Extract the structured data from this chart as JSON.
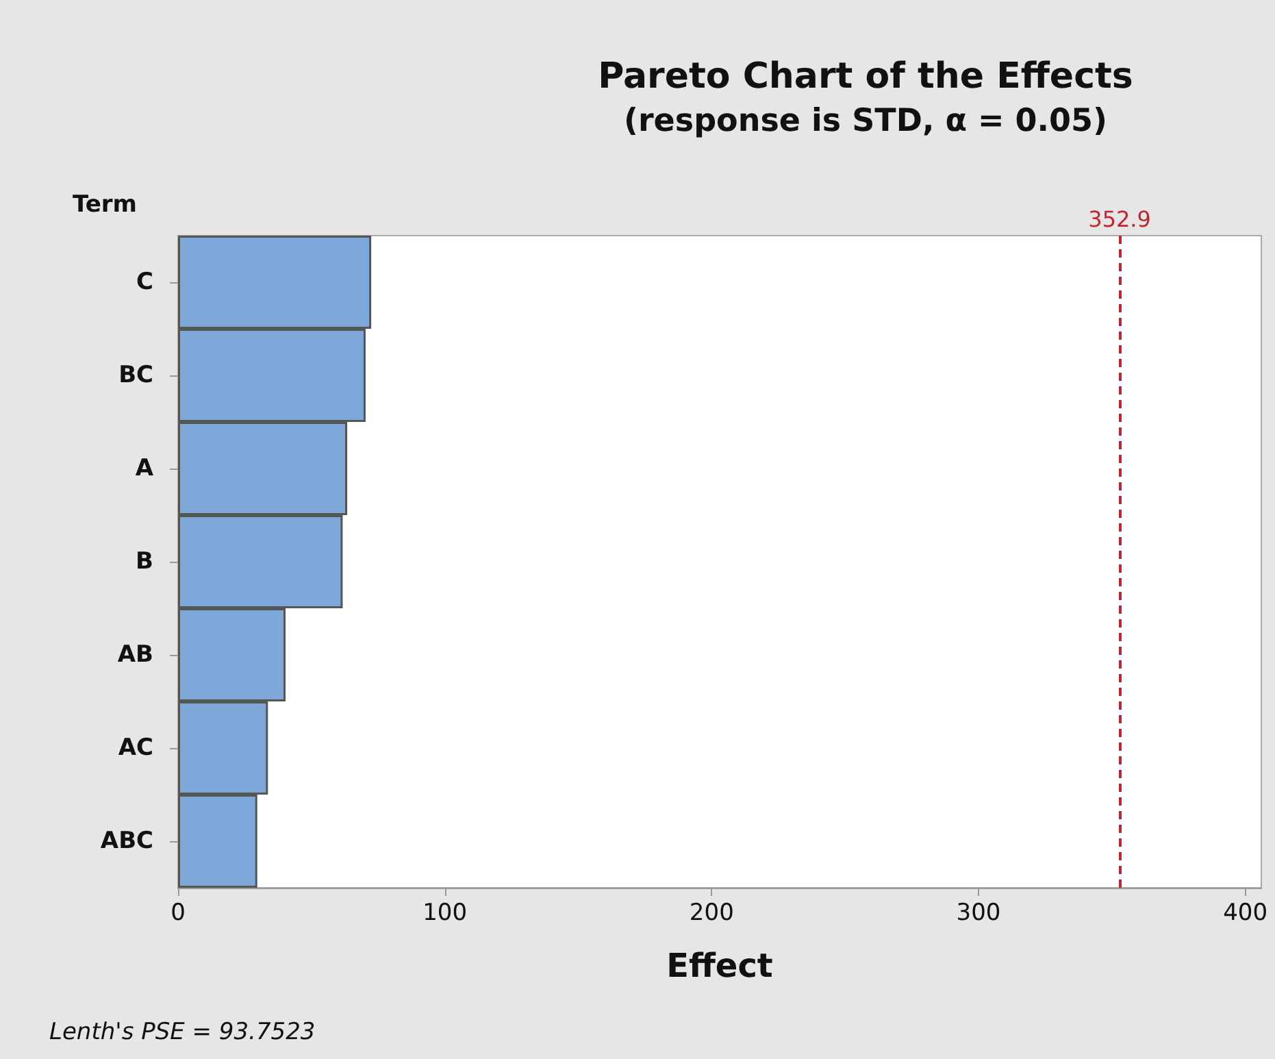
{
  "chart_data": {
    "type": "bar",
    "orientation": "horizontal",
    "title": "Pareto Chart of the Effects",
    "subtitle": "(response is STD, α = 0.05)",
    "xlabel": "Effect",
    "ylabel": "Term",
    "categories": [
      "C",
      "BC",
      "A",
      "B",
      "AB",
      "AC",
      "ABC"
    ],
    "values": [
      72.4,
      70.3,
      63.4,
      61.7,
      40.3,
      33.7,
      29.7
    ],
    "color": "#7ba7d9",
    "xlim": [
      0,
      406
    ],
    "xticks": [
      0,
      100,
      200,
      300,
      400
    ],
    "grid": false,
    "ref_lines": [
      {
        "axis": "x",
        "value": 352.9,
        "label": "352.9",
        "color": "#c0262d",
        "line_style": "dashed"
      }
    ],
    "annotations": [
      "Lenth's PSE = 93.7523"
    ]
  }
}
